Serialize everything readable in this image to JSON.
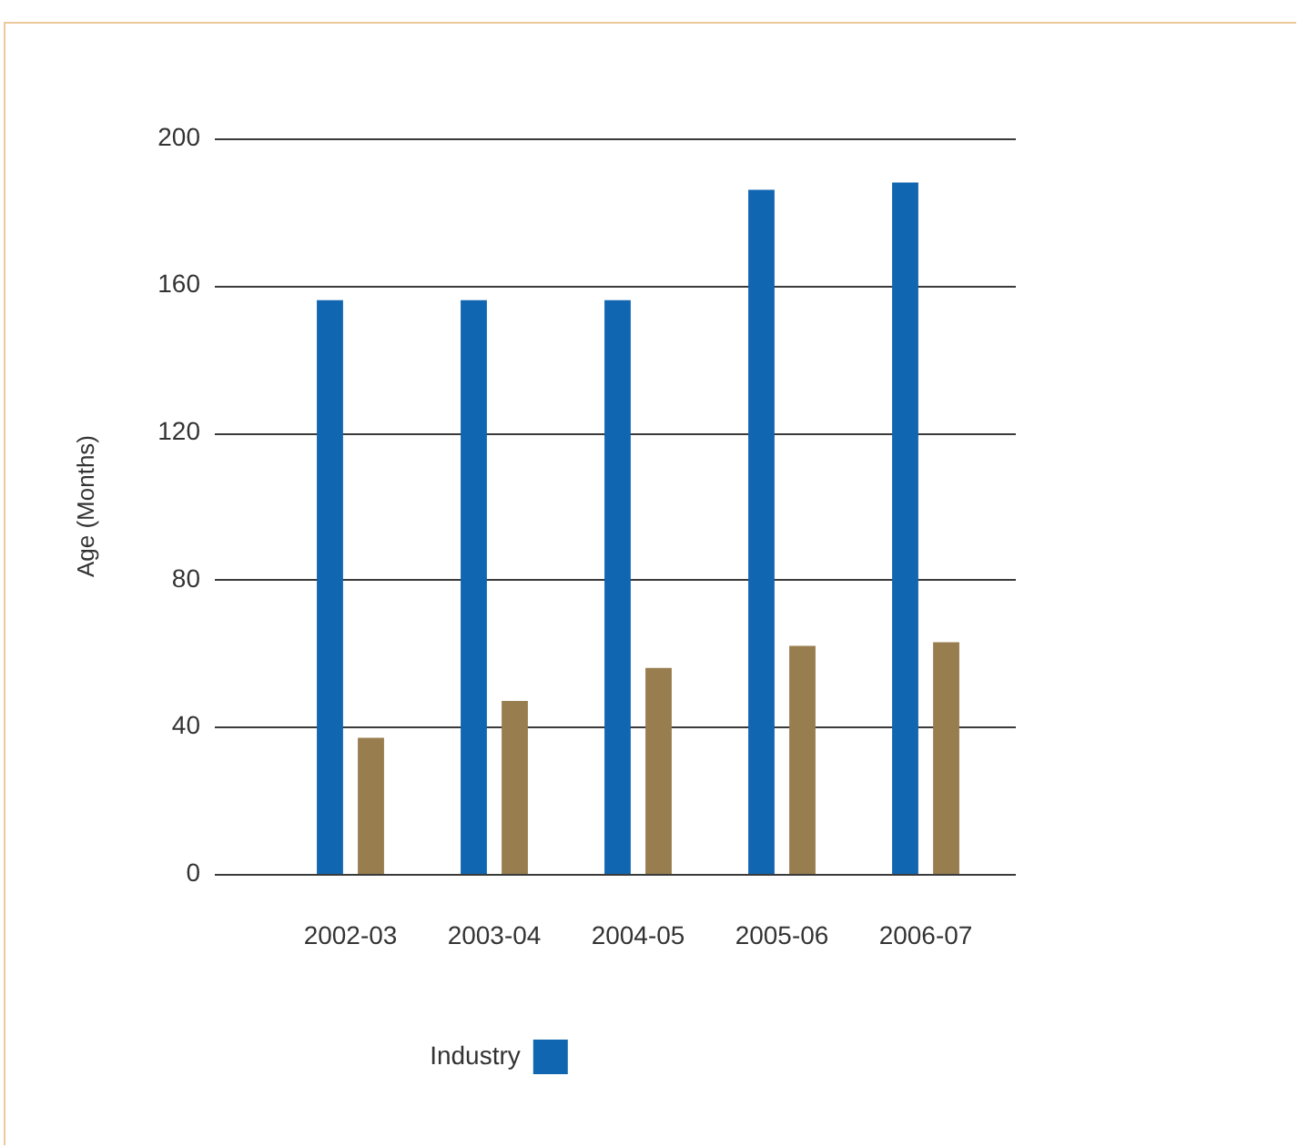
{
  "chart_data": {
    "type": "bar",
    "ylabel": "Age (Months)",
    "categories": [
      "2002-03",
      "2003-04",
      "2004-05",
      "2005-06",
      "2006-07"
    ],
    "series": [
      {
        "name": "Industry",
        "color": "#1166b1",
        "values": [
          156,
          156,
          156,
          186,
          188
        ]
      },
      {
        "color": "#987d4e",
        "values": [
          37,
          47,
          56,
          62,
          63
        ]
      }
    ],
    "ylim": [
      0,
      200
    ],
    "yticks": [
      0,
      40,
      80,
      120,
      160,
      200
    ],
    "grid": "y",
    "legend": "bottom"
  }
}
